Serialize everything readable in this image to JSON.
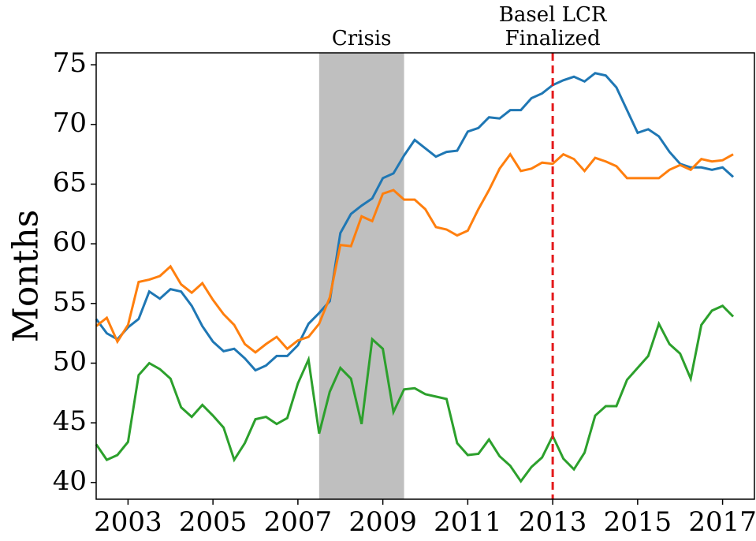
{
  "chart_data": {
    "type": "line",
    "ylabel": "Months",
    "x": [
      2002.25,
      2002.5,
      2002.75,
      2003,
      2003.25,
      2003.5,
      2003.75,
      2004,
      2004.25,
      2004.5,
      2004.75,
      2005,
      2005.25,
      2005.5,
      2005.75,
      2006,
      2006.25,
      2006.5,
      2006.75,
      2007,
      2007.25,
      2007.5,
      2007.75,
      2008,
      2008.25,
      2008.5,
      2008.75,
      2009,
      2009.25,
      2009.5,
      2009.75,
      2010,
      2010.25,
      2010.5,
      2010.75,
      2011,
      2011.25,
      2011.5,
      2011.75,
      2012,
      2012.25,
      2012.5,
      2012.75,
      2013,
      2013.25,
      2013.5,
      2013.75,
      2014,
      2014.25,
      2014.5,
      2014.75,
      2015,
      2015.25,
      2015.5,
      2015.75,
      2016,
      2016.25,
      2016.5,
      2016.75,
      2017,
      2017.25
    ],
    "series": [
      {
        "color": "#1f77b4",
        "values": [
          53.7,
          52.5,
          52.0,
          53.0,
          53.7,
          56.0,
          55.4,
          56.2,
          56.0,
          54.8,
          53.1,
          51.8,
          51.0,
          51.2,
          50.4,
          49.4,
          49.8,
          50.6,
          50.6,
          51.5,
          53.3,
          54.2,
          55.2,
          60.9,
          62.5,
          63.2,
          63.8,
          65.5,
          65.9,
          67.4,
          68.7,
          68.0,
          67.3,
          67.7,
          67.8,
          69.4,
          69.7,
          70.6,
          70.5,
          71.2,
          71.2,
          72.2,
          72.6,
          73.3,
          73.7,
          74.0,
          73.6,
          74.3,
          74.1,
          73.1,
          71.2,
          69.3,
          69.6,
          69.0,
          67.7,
          66.7,
          66.4,
          66.4,
          66.2,
          66.4,
          65.6
        ]
      },
      {
        "color": "#ff7f0e",
        "values": [
          53.1,
          53.8,
          51.8,
          53.2,
          56.8,
          57.0,
          57.3,
          58.1,
          56.6,
          55.9,
          56.7,
          55.3,
          54.1,
          53.2,
          51.6,
          50.9,
          51.6,
          52.2,
          51.2,
          51.9,
          52.2,
          53.3,
          55.5,
          59.9,
          59.8,
          62.3,
          61.9,
          64.2,
          64.5,
          63.7,
          63.7,
          62.9,
          61.4,
          61.2,
          60.7,
          61.1,
          62.9,
          64.5,
          66.3,
          67.5,
          66.1,
          66.3,
          66.8,
          66.7,
          67.5,
          67.1,
          66.1,
          67.2,
          66.9,
          66.5,
          65.5,
          65.5,
          65.5,
          65.5,
          66.2,
          66.6,
          66.2,
          67.1,
          66.9,
          67.0,
          67.5
        ]
      },
      {
        "color": "#2ca02c",
        "values": [
          43.2,
          41.9,
          42.3,
          43.4,
          49.0,
          50.0,
          49.5,
          48.7,
          46.3,
          45.5,
          46.5,
          45.6,
          44.6,
          41.9,
          43.3,
          45.3,
          45.5,
          44.9,
          45.4,
          48.3,
          50.3,
          44.1,
          47.6,
          49.6,
          48.7,
          44.9,
          52.0,
          51.2,
          45.9,
          47.8,
          47.9,
          47.4,
          47.2,
          47.0,
          43.3,
          42.3,
          42.4,
          43.6,
          42.2,
          41.4,
          40.1,
          41.3,
          42.1,
          43.9,
          42.0,
          41.1,
          42.5,
          45.6,
          46.4,
          46.4,
          48.6,
          49.6,
          50.6,
          53.3,
          51.6,
          50.8,
          48.7,
          53.2,
          54.4,
          54.8,
          53.9
        ]
      }
    ],
    "xlim": [
      2002.25,
      2017.75
    ],
    "ylim": [
      38.6,
      76
    ],
    "xticks": [
      2003,
      2005,
      2007,
      2009,
      2011,
      2013,
      2015,
      2017
    ],
    "yticks": [
      40,
      45,
      50,
      55,
      60,
      65,
      70,
      75
    ],
    "shaded_region": {
      "start": 2007.5,
      "end": 2009.5,
      "color": "#bfbfbf",
      "label": "Crisis"
    },
    "vline": {
      "x": 2013,
      "color": "#e41a1c",
      "label": [
        "Basel LCR",
        "Finalized"
      ]
    }
  }
}
